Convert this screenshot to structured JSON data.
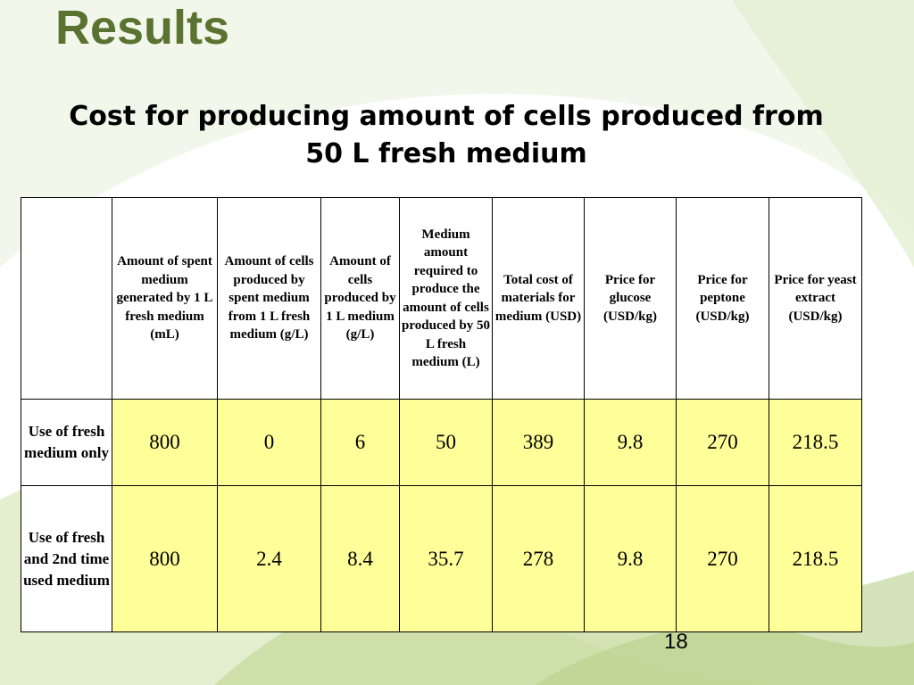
{
  "slide": {
    "title": "Results",
    "subtitle_line1": "Cost for producing amount of cells produced from",
    "subtitle_line2": "50 L fresh medium",
    "page_number": "18"
  },
  "table": {
    "headers": [
      "",
      "Amount of spent medium generated by 1 L fresh medium (mL)",
      "Amount of cells produced by spent medium from 1 L fresh medium (g/L)",
      "Amount of cells produced by 1 L medium (g/L)",
      "Medium amount required to produce the amount of cells produced by 50 L fresh medium (L)",
      "Total cost of materials for medium (USD)",
      "Price for glucose (USD/kg)",
      "Price for peptone (USD/kg)",
      "Price for yeast extract (USD/kg)"
    ],
    "rows": [
      {
        "label": "Use of fresh medium only",
        "values": [
          "800",
          "0",
          "6",
          "50",
          "389",
          "9.8",
          "270",
          "218.5"
        ]
      },
      {
        "label": "Use of fresh and 2nd time used medium",
        "values": [
          "800",
          "2.4",
          "8.4",
          "35.7",
          "278",
          "9.8",
          "270",
          "218.5"
        ]
      }
    ]
  },
  "colors": {
    "title": "#5a7330",
    "cell_fill": "#ffff99",
    "background_swirl": "#c8dca0"
  }
}
